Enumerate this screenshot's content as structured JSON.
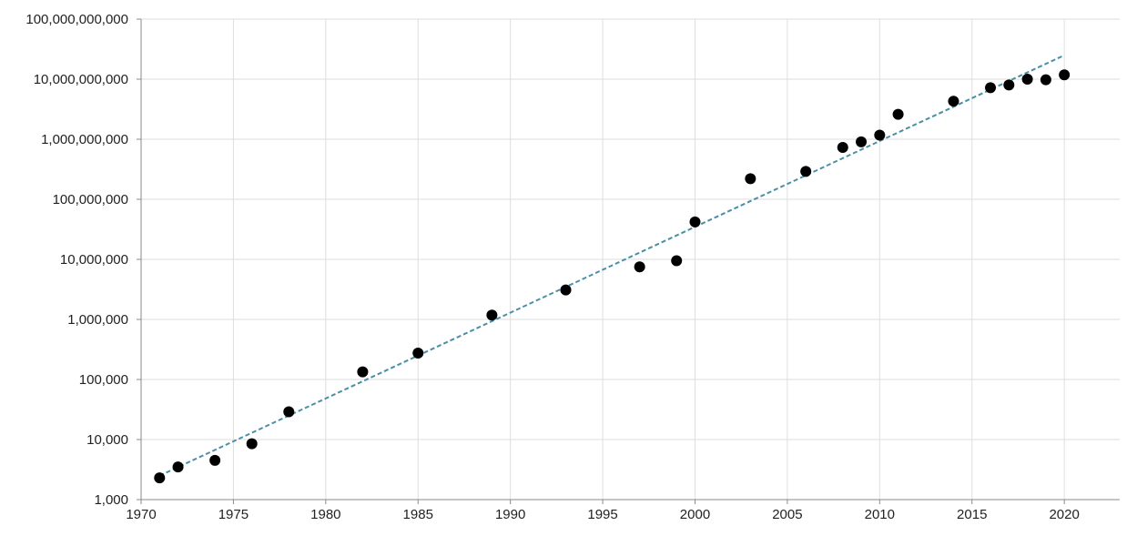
{
  "chart_data": {
    "type": "scatter",
    "title": "",
    "xlabel": "",
    "ylabel": "",
    "x_scale": "linear",
    "y_scale": "log",
    "xlim": [
      1970,
      2023
    ],
    "ylim": [
      1000,
      100000000000
    ],
    "x_ticks": [
      1970,
      1975,
      1980,
      1985,
      1990,
      1995,
      2000,
      2005,
      2010,
      2015,
      2020
    ],
    "x_tick_labels": [
      "1970",
      "1975",
      "1980",
      "1985",
      "1990",
      "1995",
      "2000",
      "2005",
      "2010",
      "2015",
      "2020"
    ],
    "y_ticks": [
      1000,
      10000,
      100000,
      1000000,
      10000000,
      100000000,
      1000000000,
      10000000000,
      100000000000
    ],
    "y_tick_labels": [
      "1,000",
      "10,000",
      "100,000",
      "1,000,000",
      "10,000,000",
      "100,000,000",
      "1,000,000,000",
      "10,000,000,000",
      "100,000,000,000"
    ],
    "grid": {
      "vertical": true,
      "horizontal": true
    },
    "legend": "none",
    "series": [
      {
        "type": "scatter",
        "color": "#000000",
        "points": [
          {
            "x": 1971,
            "y": 2300
          },
          {
            "x": 1972,
            "y": 3500
          },
          {
            "x": 1974,
            "y": 4500
          },
          {
            "x": 1976,
            "y": 8500
          },
          {
            "x": 1978,
            "y": 29000
          },
          {
            "x": 1982,
            "y": 134000
          },
          {
            "x": 1985,
            "y": 275000
          },
          {
            "x": 1989,
            "y": 1180000
          },
          {
            "x": 1993,
            "y": 3100000
          },
          {
            "x": 1997,
            "y": 7500000
          },
          {
            "x": 1999,
            "y": 9500000
          },
          {
            "x": 2000,
            "y": 42000000
          },
          {
            "x": 2003,
            "y": 220000000
          },
          {
            "x": 2006,
            "y": 291000000
          },
          {
            "x": 2008,
            "y": 731000000
          },
          {
            "x": 2009,
            "y": 904000000
          },
          {
            "x": 2010,
            "y": 1170000000
          },
          {
            "x": 2011,
            "y": 2600000000
          },
          {
            "x": 2014,
            "y": 4300000000
          },
          {
            "x": 2016,
            "y": 7200000000
          },
          {
            "x": 2017,
            "y": 8000000000
          },
          {
            "x": 2018,
            "y": 10000000000
          },
          {
            "x": 2019,
            "y": 9800000000
          },
          {
            "x": 2020,
            "y": 11800000000
          }
        ]
      },
      {
        "type": "trendline",
        "style": "dashed",
        "color": "#4a8fa6",
        "points": [
          {
            "x": 1971,
            "y": 2500
          },
          {
            "x": 2020,
            "y": 25000000000
          }
        ]
      }
    ]
  }
}
